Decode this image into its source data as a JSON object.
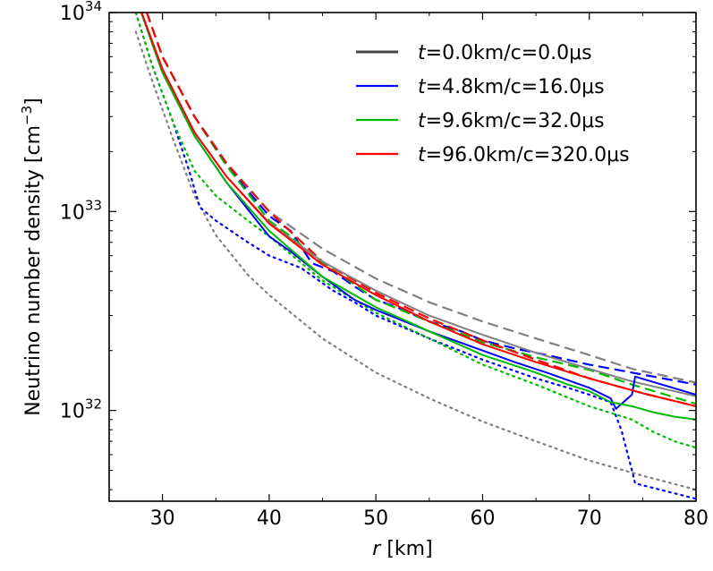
{
  "chart_data": {
    "type": "line",
    "xlabel_var": "r",
    "xlabel_unit": "[km]",
    "ylabel": "Neutrino number density [cm",
    "ylabel_exp": "−3",
    "ylabel_close": "]",
    "xlim": [
      25,
      80
    ],
    "ylim": [
      3.5e+31,
      1e+34
    ],
    "yscale": "log",
    "x_ticks": [
      30,
      40,
      50,
      60,
      70,
      80
    ],
    "x_tick_labels": [
      "30",
      "40",
      "50",
      "60",
      "70",
      "80"
    ],
    "y_ticks": [
      1e+32,
      1e+33,
      1e+34
    ],
    "y_tick_bases": [
      "10",
      "10",
      "10"
    ],
    "y_tick_exps": [
      "32",
      "33",
      "34"
    ],
    "legend_location": "top-right",
    "legend_var": "t",
    "line_styles_note": "solid, dashed and dotted curves share each series colour",
    "series": [
      {
        "name": "=0.0km/c=0.0μs",
        "color": "#808080",
        "legend_color": "#444444",
        "solid": {
          "x": [
            27.5,
            30,
            33,
            36,
            40,
            45,
            50,
            55,
            60,
            65,
            70,
            74,
            80
          ],
          "y": [
            1.2e+34,
            5e+33,
            2.5e+33,
            1.5e+33,
            8.8e+32,
            5.6e+32,
            4e+32,
            3e+32,
            2.4e+32,
            1.95e+32,
            1.62e+32,
            1.4e+32,
            1.18e+32
          ]
        },
        "dashed": {
          "x": [
            28,
            30,
            33,
            36,
            40,
            45,
            50,
            55,
            60,
            65,
            70,
            74,
            80
          ],
          "y": [
            1.2e+34,
            6e+33,
            3e+33,
            1.75e+33,
            1e+33,
            6.5e+32,
            4.6e+32,
            3.5e+32,
            2.8e+32,
            2.3e+32,
            1.9e+32,
            1.62e+32,
            1.38e+32
          ]
        },
        "dotted": {
          "x": [
            27.5,
            29,
            31,
            33,
            35,
            38,
            40,
            45,
            50,
            55,
            60,
            65,
            70,
            75,
            80
          ],
          "y": [
            8e+33,
            4.6e+33,
            2.3e+33,
            1.2e+33,
            7.6e+32,
            4.8e+32,
            3.8e+32,
            2.3e+32,
            1.55e+32,
            1.15e+32,
            8.8e+31,
            7e+31,
            5.6e+31,
            4.7e+31,
            4e+31
          ]
        }
      },
      {
        "name": "=4.8km/c=16.0μs",
        "color": "#0000ff",
        "legend_color": "#0000ff",
        "solid": {
          "x": [
            27.5,
            30,
            33,
            36,
            40,
            42,
            45,
            48,
            50,
            55,
            60,
            63,
            66,
            68,
            70,
            72,
            72.5,
            74,
            74.3,
            80
          ],
          "y": [
            1.2e+34,
            5e+33,
            2.4e+33,
            1.4e+33,
            7.5e+32,
            6.3e+32,
            4.7e+32,
            3.6e+32,
            3.2e+32,
            2.5e+32,
            2e+32,
            1.75e+32,
            1.55e+32,
            1.42e+32,
            1.3e+32,
            1.15e+32,
            1.02e+32,
            1.2e+32,
            1.48e+32,
            1.2e+32
          ]
        },
        "dashed": {
          "x": [
            28,
            30,
            33,
            36,
            40,
            42,
            44,
            46,
            48,
            50,
            52,
            55,
            58,
            60,
            63,
            66,
            70,
            74,
            80
          ],
          "y": [
            1.2e+34,
            6e+33,
            3e+33,
            1.7e+33,
            9.5e+32,
            8e+32,
            5.5e+32,
            5e+32,
            4.2e+32,
            3.6e+32,
            3.3e+32,
            2.8e+32,
            2.5e+32,
            2.25e+32,
            2.05e+32,
            1.9e+32,
            1.7e+32,
            1.55e+32,
            1.35e+32
          ]
        },
        "dotted": {
          "x": [
            27.5,
            29,
            31,
            32.5,
            33.5,
            35,
            38,
            40,
            43,
            46,
            48,
            50,
            55,
            60,
            65,
            68,
            70,
            72,
            73,
            74,
            74.3,
            80
          ],
          "y": [
            1e+34,
            5.5e+33,
            2.8e+33,
            1.6e+33,
            1.05e+33,
            9e+32,
            7e+32,
            6e+32,
            5.2e+32,
            4e+32,
            3.5e+32,
            3e+32,
            2.3e+32,
            1.8e+32,
            1.45e+32,
            1.3e+32,
            1.2e+32,
            1.1e+32,
            8e+31,
            5e+31,
            4.3e+31,
            3.6e+31
          ]
        }
      },
      {
        "name": "=9.6km/c=32.0μs",
        "color": "#00bb00",
        "legend_color": "#00bb00",
        "solid": {
          "x": [
            27.5,
            30,
            33,
            36,
            40,
            45,
            50,
            55,
            60,
            65,
            68,
            70,
            72,
            74,
            76,
            78,
            80
          ],
          "y": [
            1.2e+34,
            5e+33,
            2.4e+33,
            1.4e+33,
            8e+32,
            4.7e+32,
            3.3e+32,
            2.5e+32,
            1.9e+32,
            1.55e+32,
            1.35e+32,
            1.25e+32,
            1.1e+32,
            1.05e+32,
            9.8e+31,
            9.3e+31,
            9e+31
          ]
        },
        "dashed": {
          "x": [
            28,
            30,
            33,
            36,
            40,
            42,
            45,
            48,
            50,
            55,
            60,
            65,
            70,
            74,
            80
          ],
          "y": [
            1.2e+34,
            6e+33,
            3e+33,
            1.7e+33,
            9e+32,
            7.5e+32,
            5.5e+32,
            4.3e+32,
            3.6e+32,
            2.8e+32,
            2.2e+32,
            1.85e+32,
            1.6e+32,
            1.35e+32,
            1.08e+32
          ]
        },
        "dotted": {
          "x": [
            27.5,
            29,
            31,
            33,
            35,
            38,
            40,
            45,
            50,
            55,
            60,
            65,
            70,
            74,
            76,
            78,
            80
          ],
          "y": [
            1e+34,
            5.5e+33,
            2.8e+33,
            1.6e+33,
            1.2e+33,
            9e+32,
            7.5e+32,
            4.5e+32,
            3.1e+32,
            2.3e+32,
            1.7e+32,
            1.35e+32,
            1.05e+32,
            9e+31,
            7.8e+31,
            7e+31,
            6.5e+31
          ]
        }
      },
      {
        "name": "=96.0km/c=320.0μs",
        "color": "#ff0000",
        "legend_color": "#ff0000",
        "solid": {
          "x": [
            27.5,
            30,
            33,
            36,
            40,
            45,
            50,
            55,
            60,
            65,
            70,
            75,
            80
          ],
          "y": [
            1.2e+34,
            5.2e+33,
            2.5e+33,
            1.5e+33,
            8.7e+32,
            5.4e+32,
            3.8e+32,
            2.8e+32,
            2.15e+32,
            1.75e+32,
            1.45e+32,
            1.22e+32,
            1.05e+32
          ]
        },
        "dashed": {
          "x": [
            28,
            30,
            33,
            36,
            40,
            45,
            50,
            55,
            60,
            65,
            70,
            75,
            80
          ],
          "y": [
            1.2e+34,
            6e+33,
            3e+33,
            1.75e+33,
            1e+33,
            5.6e+32,
            3.9e+32,
            2.9e+32,
            2.25e+32,
            1.8e+32,
            1.45e+32,
            1.22e+32,
            1.05e+32
          ]
        }
      }
    ]
  }
}
